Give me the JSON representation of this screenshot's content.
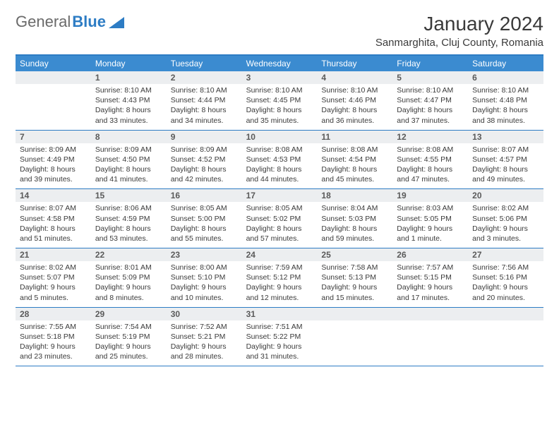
{
  "logo": {
    "part1": "General",
    "part2": "Blue"
  },
  "title": "January 2024",
  "location": "Sanmarghita, Cluj County, Romania",
  "colors": {
    "header_bg": "#3b8bd0",
    "border": "#2d7cc4",
    "band_bg": "#eceef0",
    "logo_gray": "#6a6a6a",
    "logo_blue": "#2d7cc4"
  },
  "weekdays": [
    "Sunday",
    "Monday",
    "Tuesday",
    "Wednesday",
    "Thursday",
    "Friday",
    "Saturday"
  ],
  "weeks": [
    [
      {
        "day": "",
        "lines": []
      },
      {
        "day": "1",
        "lines": [
          "Sunrise: 8:10 AM",
          "Sunset: 4:43 PM",
          "Daylight: 8 hours",
          "and 33 minutes."
        ]
      },
      {
        "day": "2",
        "lines": [
          "Sunrise: 8:10 AM",
          "Sunset: 4:44 PM",
          "Daylight: 8 hours",
          "and 34 minutes."
        ]
      },
      {
        "day": "3",
        "lines": [
          "Sunrise: 8:10 AM",
          "Sunset: 4:45 PM",
          "Daylight: 8 hours",
          "and 35 minutes."
        ]
      },
      {
        "day": "4",
        "lines": [
          "Sunrise: 8:10 AM",
          "Sunset: 4:46 PM",
          "Daylight: 8 hours",
          "and 36 minutes."
        ]
      },
      {
        "day": "5",
        "lines": [
          "Sunrise: 8:10 AM",
          "Sunset: 4:47 PM",
          "Daylight: 8 hours",
          "and 37 minutes."
        ]
      },
      {
        "day": "6",
        "lines": [
          "Sunrise: 8:10 AM",
          "Sunset: 4:48 PM",
          "Daylight: 8 hours",
          "and 38 minutes."
        ]
      }
    ],
    [
      {
        "day": "7",
        "lines": [
          "Sunrise: 8:09 AM",
          "Sunset: 4:49 PM",
          "Daylight: 8 hours",
          "and 39 minutes."
        ]
      },
      {
        "day": "8",
        "lines": [
          "Sunrise: 8:09 AM",
          "Sunset: 4:50 PM",
          "Daylight: 8 hours",
          "and 41 minutes."
        ]
      },
      {
        "day": "9",
        "lines": [
          "Sunrise: 8:09 AM",
          "Sunset: 4:52 PM",
          "Daylight: 8 hours",
          "and 42 minutes."
        ]
      },
      {
        "day": "10",
        "lines": [
          "Sunrise: 8:08 AM",
          "Sunset: 4:53 PM",
          "Daylight: 8 hours",
          "and 44 minutes."
        ]
      },
      {
        "day": "11",
        "lines": [
          "Sunrise: 8:08 AM",
          "Sunset: 4:54 PM",
          "Daylight: 8 hours",
          "and 45 minutes."
        ]
      },
      {
        "day": "12",
        "lines": [
          "Sunrise: 8:08 AM",
          "Sunset: 4:55 PM",
          "Daylight: 8 hours",
          "and 47 minutes."
        ]
      },
      {
        "day": "13",
        "lines": [
          "Sunrise: 8:07 AM",
          "Sunset: 4:57 PM",
          "Daylight: 8 hours",
          "and 49 minutes."
        ]
      }
    ],
    [
      {
        "day": "14",
        "lines": [
          "Sunrise: 8:07 AM",
          "Sunset: 4:58 PM",
          "Daylight: 8 hours",
          "and 51 minutes."
        ]
      },
      {
        "day": "15",
        "lines": [
          "Sunrise: 8:06 AM",
          "Sunset: 4:59 PM",
          "Daylight: 8 hours",
          "and 53 minutes."
        ]
      },
      {
        "day": "16",
        "lines": [
          "Sunrise: 8:05 AM",
          "Sunset: 5:00 PM",
          "Daylight: 8 hours",
          "and 55 minutes."
        ]
      },
      {
        "day": "17",
        "lines": [
          "Sunrise: 8:05 AM",
          "Sunset: 5:02 PM",
          "Daylight: 8 hours",
          "and 57 minutes."
        ]
      },
      {
        "day": "18",
        "lines": [
          "Sunrise: 8:04 AM",
          "Sunset: 5:03 PM",
          "Daylight: 8 hours",
          "and 59 minutes."
        ]
      },
      {
        "day": "19",
        "lines": [
          "Sunrise: 8:03 AM",
          "Sunset: 5:05 PM",
          "Daylight: 9 hours",
          "and 1 minute."
        ]
      },
      {
        "day": "20",
        "lines": [
          "Sunrise: 8:02 AM",
          "Sunset: 5:06 PM",
          "Daylight: 9 hours",
          "and 3 minutes."
        ]
      }
    ],
    [
      {
        "day": "21",
        "lines": [
          "Sunrise: 8:02 AM",
          "Sunset: 5:07 PM",
          "Daylight: 9 hours",
          "and 5 minutes."
        ]
      },
      {
        "day": "22",
        "lines": [
          "Sunrise: 8:01 AM",
          "Sunset: 5:09 PM",
          "Daylight: 9 hours",
          "and 8 minutes."
        ]
      },
      {
        "day": "23",
        "lines": [
          "Sunrise: 8:00 AM",
          "Sunset: 5:10 PM",
          "Daylight: 9 hours",
          "and 10 minutes."
        ]
      },
      {
        "day": "24",
        "lines": [
          "Sunrise: 7:59 AM",
          "Sunset: 5:12 PM",
          "Daylight: 9 hours",
          "and 12 minutes."
        ]
      },
      {
        "day": "25",
        "lines": [
          "Sunrise: 7:58 AM",
          "Sunset: 5:13 PM",
          "Daylight: 9 hours",
          "and 15 minutes."
        ]
      },
      {
        "day": "26",
        "lines": [
          "Sunrise: 7:57 AM",
          "Sunset: 5:15 PM",
          "Daylight: 9 hours",
          "and 17 minutes."
        ]
      },
      {
        "day": "27",
        "lines": [
          "Sunrise: 7:56 AM",
          "Sunset: 5:16 PM",
          "Daylight: 9 hours",
          "and 20 minutes."
        ]
      }
    ],
    [
      {
        "day": "28",
        "lines": [
          "Sunrise: 7:55 AM",
          "Sunset: 5:18 PM",
          "Daylight: 9 hours",
          "and 23 minutes."
        ]
      },
      {
        "day": "29",
        "lines": [
          "Sunrise: 7:54 AM",
          "Sunset: 5:19 PM",
          "Daylight: 9 hours",
          "and 25 minutes."
        ]
      },
      {
        "day": "30",
        "lines": [
          "Sunrise: 7:52 AM",
          "Sunset: 5:21 PM",
          "Daylight: 9 hours",
          "and 28 minutes."
        ]
      },
      {
        "day": "31",
        "lines": [
          "Sunrise: 7:51 AM",
          "Sunset: 5:22 PM",
          "Daylight: 9 hours",
          "and 31 minutes."
        ]
      },
      {
        "day": "",
        "lines": []
      },
      {
        "day": "",
        "lines": []
      },
      {
        "day": "",
        "lines": []
      }
    ]
  ]
}
